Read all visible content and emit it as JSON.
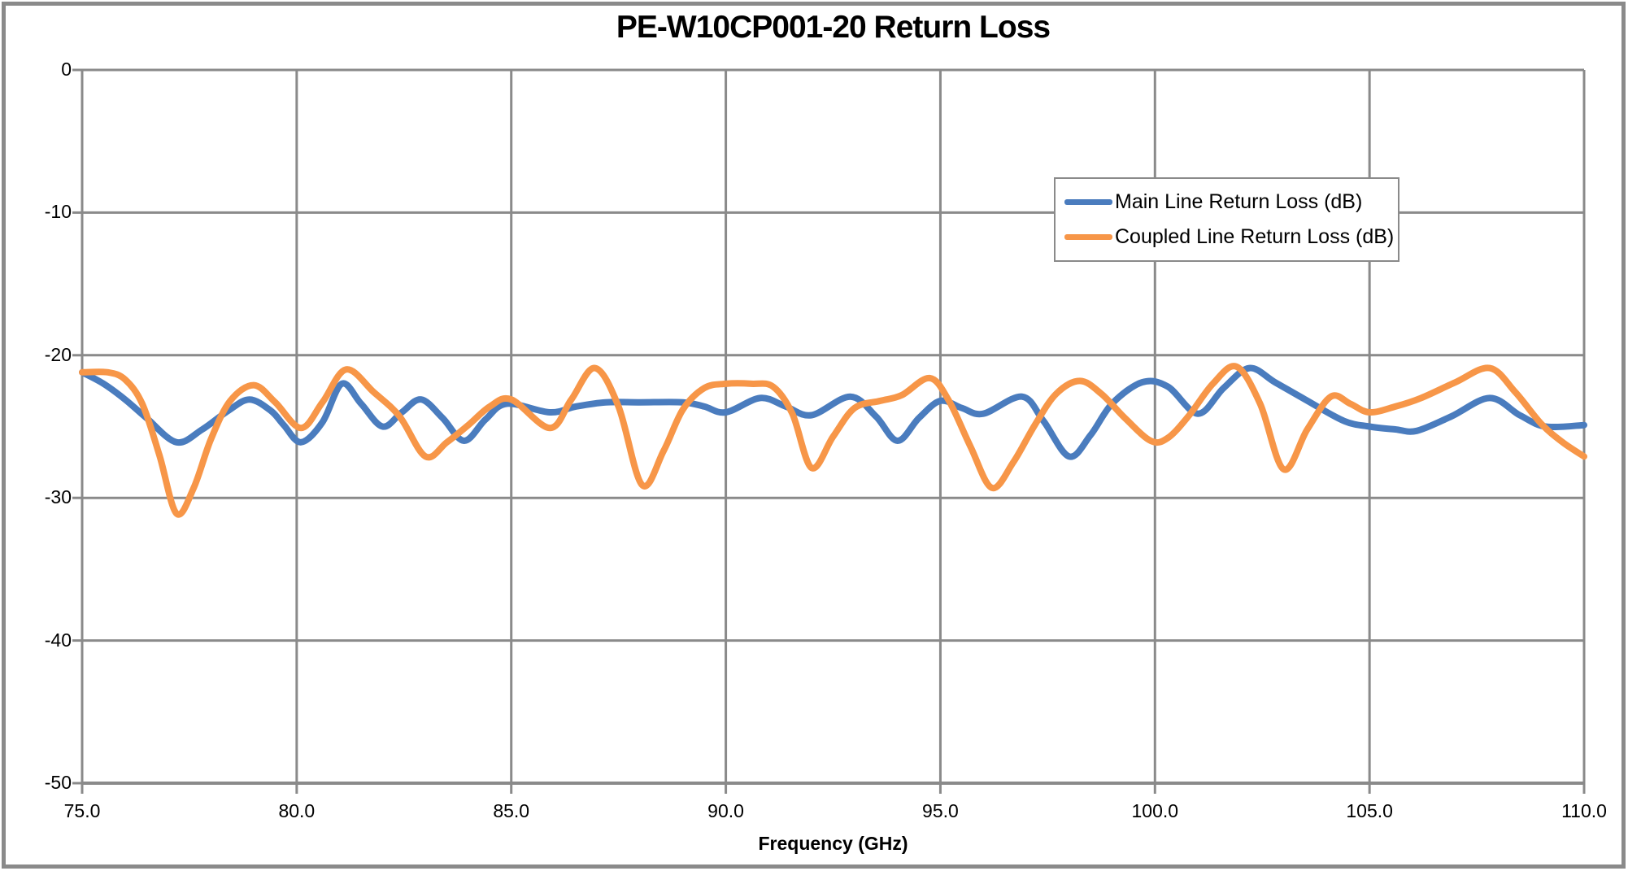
{
  "chart_data": {
    "type": "line",
    "title": "PE-W10CP001-20 Return Loss",
    "xlabel": "Frequency (GHz)",
    "ylabel": "",
    "x_range": [
      75,
      110
    ],
    "y_range": [
      -50,
      0
    ],
    "grid": true,
    "legend_position": "inside-upper-right",
    "x_ticks": [
      {
        "value": 75,
        "label": "75.0"
      },
      {
        "value": 80,
        "label": "80.0"
      },
      {
        "value": 85,
        "label": "85.0"
      },
      {
        "value": 90,
        "label": "90.0"
      },
      {
        "value": 95,
        "label": "95.0"
      },
      {
        "value": 100,
        "label": "100.0"
      },
      {
        "value": 105,
        "label": "105.0"
      },
      {
        "value": 110,
        "label": "110.0"
      }
    ],
    "y_ticks": [
      {
        "value": 0,
        "label": "0"
      },
      {
        "value": -10,
        "label": "-10"
      },
      {
        "value": -20,
        "label": "-20"
      },
      {
        "value": -30,
        "label": "-30"
      },
      {
        "value": -40,
        "label": "-40"
      },
      {
        "value": -50,
        "label": "-50"
      }
    ],
    "theme": {
      "gridline_color": "#8a8a8a",
      "frame_color": "#8a8a8a",
      "text_color": "#000000",
      "background": "#ffffff",
      "line_width": 8
    },
    "series": [
      {
        "name": "Main Line Return Loss (dB)",
        "color": "#4a7cbe",
        "points": [
          [
            75,
            -21.2
          ],
          [
            75.5,
            -22
          ],
          [
            76,
            -23.1
          ],
          [
            76.5,
            -24.4
          ],
          [
            77.2,
            -26.1
          ],
          [
            77.8,
            -25.2
          ],
          [
            78.4,
            -23.9
          ],
          [
            78.9,
            -23.1
          ],
          [
            79.4,
            -23.9
          ],
          [
            79.7,
            -24.9
          ],
          [
            80.1,
            -26.1
          ],
          [
            80.6,
            -24.7
          ],
          [
            81.05,
            -22
          ],
          [
            81.5,
            -23.4
          ],
          [
            82,
            -25
          ],
          [
            82.45,
            -24
          ],
          [
            82.9,
            -23.1
          ],
          [
            83.4,
            -24.4
          ],
          [
            83.9,
            -26
          ],
          [
            84.4,
            -24.5
          ],
          [
            84.9,
            -23.4
          ],
          [
            85.9,
            -24
          ],
          [
            86.5,
            -23.6
          ],
          [
            87.2,
            -23.3
          ],
          [
            88,
            -23.3
          ],
          [
            89,
            -23.3
          ],
          [
            89.5,
            -23.6
          ],
          [
            90,
            -24
          ],
          [
            90.8,
            -23
          ],
          [
            91.4,
            -23.6
          ],
          [
            92,
            -24.2
          ],
          [
            92.9,
            -22.9
          ],
          [
            93.5,
            -24.3
          ],
          [
            94,
            -26
          ],
          [
            94.5,
            -24.4
          ],
          [
            95,
            -23.2
          ],
          [
            95.5,
            -23.7
          ],
          [
            96,
            -24.1
          ],
          [
            96.9,
            -22.9
          ],
          [
            97.4,
            -24.6
          ],
          [
            98,
            -27.1
          ],
          [
            98.5,
            -25.6
          ],
          [
            99,
            -23.4
          ],
          [
            99.7,
            -21.9
          ],
          [
            100.3,
            -22.2
          ],
          [
            101,
            -24.1
          ],
          [
            101.6,
            -22.3
          ],
          [
            102.2,
            -20.9
          ],
          [
            102.8,
            -21.9
          ],
          [
            103.5,
            -23.1
          ],
          [
            104.4,
            -24.6
          ],
          [
            105,
            -25
          ],
          [
            105.6,
            -25.2
          ],
          [
            106.1,
            -25.3
          ],
          [
            106.9,
            -24.3
          ],
          [
            107.8,
            -23
          ],
          [
            108.5,
            -24.2
          ],
          [
            109.1,
            -25
          ],
          [
            110,
            -24.9
          ]
        ]
      },
      {
        "name": "Coupled Line Return Loss (dB)",
        "color": "#f79648",
        "points": [
          [
            75,
            -21.2
          ],
          [
            75.6,
            -21.2
          ],
          [
            76,
            -21.7
          ],
          [
            76.4,
            -23.4
          ],
          [
            76.8,
            -27
          ],
          [
            77.2,
            -31.1
          ],
          [
            77.6,
            -29.3
          ],
          [
            78,
            -25.9
          ],
          [
            78.45,
            -23.2
          ],
          [
            79,
            -22.1
          ],
          [
            79.5,
            -23.3
          ],
          [
            80.1,
            -25.1
          ],
          [
            80.6,
            -23.3
          ],
          [
            81.15,
            -21
          ],
          [
            81.8,
            -22.6
          ],
          [
            82.4,
            -24.3
          ],
          [
            83,
            -27.1
          ],
          [
            83.5,
            -26.1
          ],
          [
            84,
            -24.9
          ],
          [
            84.5,
            -23.6
          ],
          [
            85,
            -23.1
          ],
          [
            85.9,
            -25.1
          ],
          [
            86.4,
            -23.1
          ],
          [
            86.95,
            -20.9
          ],
          [
            87.5,
            -23.6
          ],
          [
            88.05,
            -29.1
          ],
          [
            88.55,
            -26.7
          ],
          [
            89,
            -23.8
          ],
          [
            89.5,
            -22.3
          ],
          [
            90,
            -22
          ],
          [
            90.6,
            -22
          ],
          [
            91.1,
            -22.2
          ],
          [
            91.55,
            -24.1
          ],
          [
            92,
            -27.9
          ],
          [
            92.5,
            -25.7
          ],
          [
            93,
            -23.7
          ],
          [
            93.6,
            -23.2
          ],
          [
            94.1,
            -22.8
          ],
          [
            94.75,
            -21.6
          ],
          [
            95.2,
            -23.2
          ],
          [
            95.7,
            -26.4
          ],
          [
            96.2,
            -29.3
          ],
          [
            96.7,
            -27.5
          ],
          [
            97.2,
            -24.9
          ],
          [
            97.7,
            -22.7
          ],
          [
            98.25,
            -21.8
          ],
          [
            98.75,
            -22.7
          ],
          [
            99.3,
            -24.4
          ],
          [
            99.9,
            -26
          ],
          [
            100.3,
            -25.8
          ],
          [
            100.8,
            -24.2
          ],
          [
            101.35,
            -22
          ],
          [
            101.9,
            -20.8
          ],
          [
            102.45,
            -23.4
          ],
          [
            103,
            -28
          ],
          [
            103.55,
            -25.2
          ],
          [
            104.1,
            -22.9
          ],
          [
            104.55,
            -23.4
          ],
          [
            105,
            -24
          ],
          [
            105.6,
            -23.6
          ],
          [
            106.2,
            -23
          ],
          [
            107,
            -21.9
          ],
          [
            107.8,
            -20.9
          ],
          [
            108.4,
            -22.6
          ],
          [
            109,
            -24.8
          ],
          [
            109.5,
            -26.1
          ],
          [
            110,
            -27.1
          ]
        ]
      }
    ]
  }
}
